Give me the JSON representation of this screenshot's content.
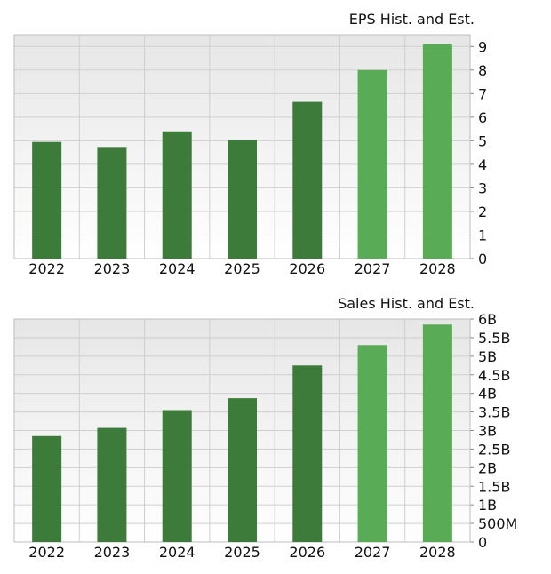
{
  "chart_data": [
    {
      "type": "bar",
      "title": "EPS Hist. and Est.",
      "categories": [
        "2022",
        "2023",
        "2024",
        "2025",
        "2026",
        "2027",
        "2028"
      ],
      "values": [
        4.95,
        4.7,
        5.4,
        5.05,
        6.65,
        8.0,
        9.1
      ],
      "estimate": [
        false,
        false,
        false,
        false,
        false,
        true,
        true
      ],
      "ylim": [
        0,
        9.5
      ],
      "yticks": [
        0,
        1,
        2,
        3,
        4,
        5,
        6,
        7,
        8,
        9
      ],
      "ytick_labels": [
        "0",
        "1",
        "2",
        "3",
        "4",
        "5",
        "6",
        "7",
        "8",
        "9"
      ],
      "grid": true,
      "colors": {
        "historical": "#3d7b3a",
        "estimate": "#5aab55",
        "grid": "#cfcfcf"
      }
    },
    {
      "type": "bar",
      "title": "Sales Hist. and Est.",
      "categories": [
        "2022",
        "2023",
        "2024",
        "2025",
        "2026",
        "2027",
        "2028"
      ],
      "values": [
        2.85,
        3.07,
        3.55,
        3.87,
        4.75,
        5.3,
        5.85
      ],
      "unit": "billions",
      "estimate": [
        false,
        false,
        false,
        false,
        false,
        true,
        true
      ],
      "ylim": [
        0,
        6
      ],
      "yticks": [
        0,
        0.5,
        1,
        1.5,
        2,
        2.5,
        3,
        3.5,
        4,
        4.5,
        5,
        5.5,
        6
      ],
      "ytick_labels": [
        "0",
        "500M",
        "1B",
        "1.5B",
        "2B",
        "2.5B",
        "3B",
        "3.5B",
        "4B",
        "4.5B",
        "5B",
        "5.5B",
        "6B"
      ],
      "grid": true,
      "colors": {
        "historical": "#3d7b3a",
        "estimate": "#5aab55",
        "grid": "#cfcfcf"
      }
    }
  ]
}
